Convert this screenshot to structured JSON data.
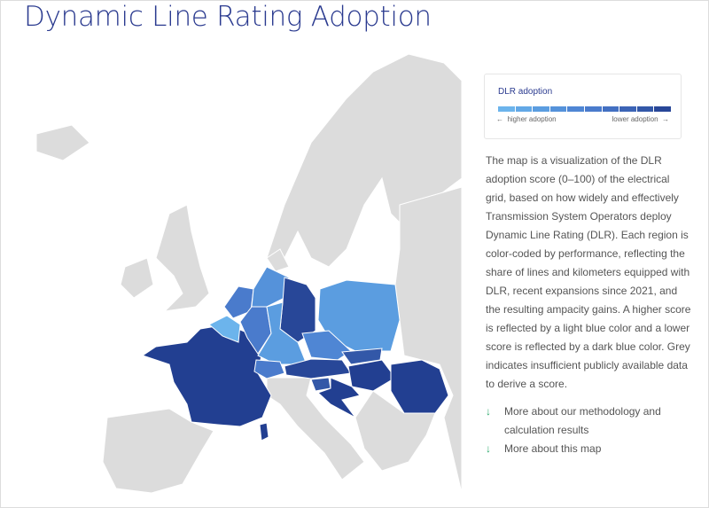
{
  "title": "Dynamic Line Rating Adoption",
  "legend": {
    "title": "DLR adoption",
    "higher": "higher adoption",
    "lower": "lower adoption",
    "left_arrow": "←",
    "right_arrow": "→",
    "scale_colors": [
      "#6cb4ec",
      "#63a8e6",
      "#5b9de0",
      "#5592da",
      "#4f86d4",
      "#4a7bcc",
      "#4370c2",
      "#3c64b6",
      "#3358a8",
      "#284798"
    ]
  },
  "description": "The map is a visualization of the DLR adoption score (0–100) of the electrical grid, based on how widely and effectively Transmission System Operators deploy Dynamic Line Rating (DLR). Each region is color-coded by performance, reflecting the share of lines and kilometers equipped with DLR, recent expansions since 2021, and the resulting ampacity gains. A higher score is reflected by a light blue color and a lower score is reflected by a dark blue color. Grey indicates insufficient publicly available data to derive a score.",
  "links": [
    {
      "icon": "arrow-down-icon",
      "arrow": "↓",
      "label": "More about our methodology and calculation results"
    },
    {
      "icon": "arrow-down-icon",
      "arrow": "↓",
      "label": "More about this map"
    }
  ],
  "map_colors": {
    "no_data": "#dcdcdc",
    "france": "#223f91",
    "poland": "#5b9de0",
    "belgium": "#6cb4ec",
    "netherlands": "#4a7bcc",
    "germany_n": "#5592da",
    "germany_e": "#284798",
    "germany_s": "#5b9de0",
    "germany_w": "#4a7bcc",
    "czechia": "#4f86d4",
    "switzerland": "#4a7bcc",
    "austria": "#284798",
    "slovakia": "#3358a8",
    "hungary": "#223f91",
    "croatia": "#223f91",
    "slovenia": "#3358a8",
    "romania": "#223f91"
  }
}
